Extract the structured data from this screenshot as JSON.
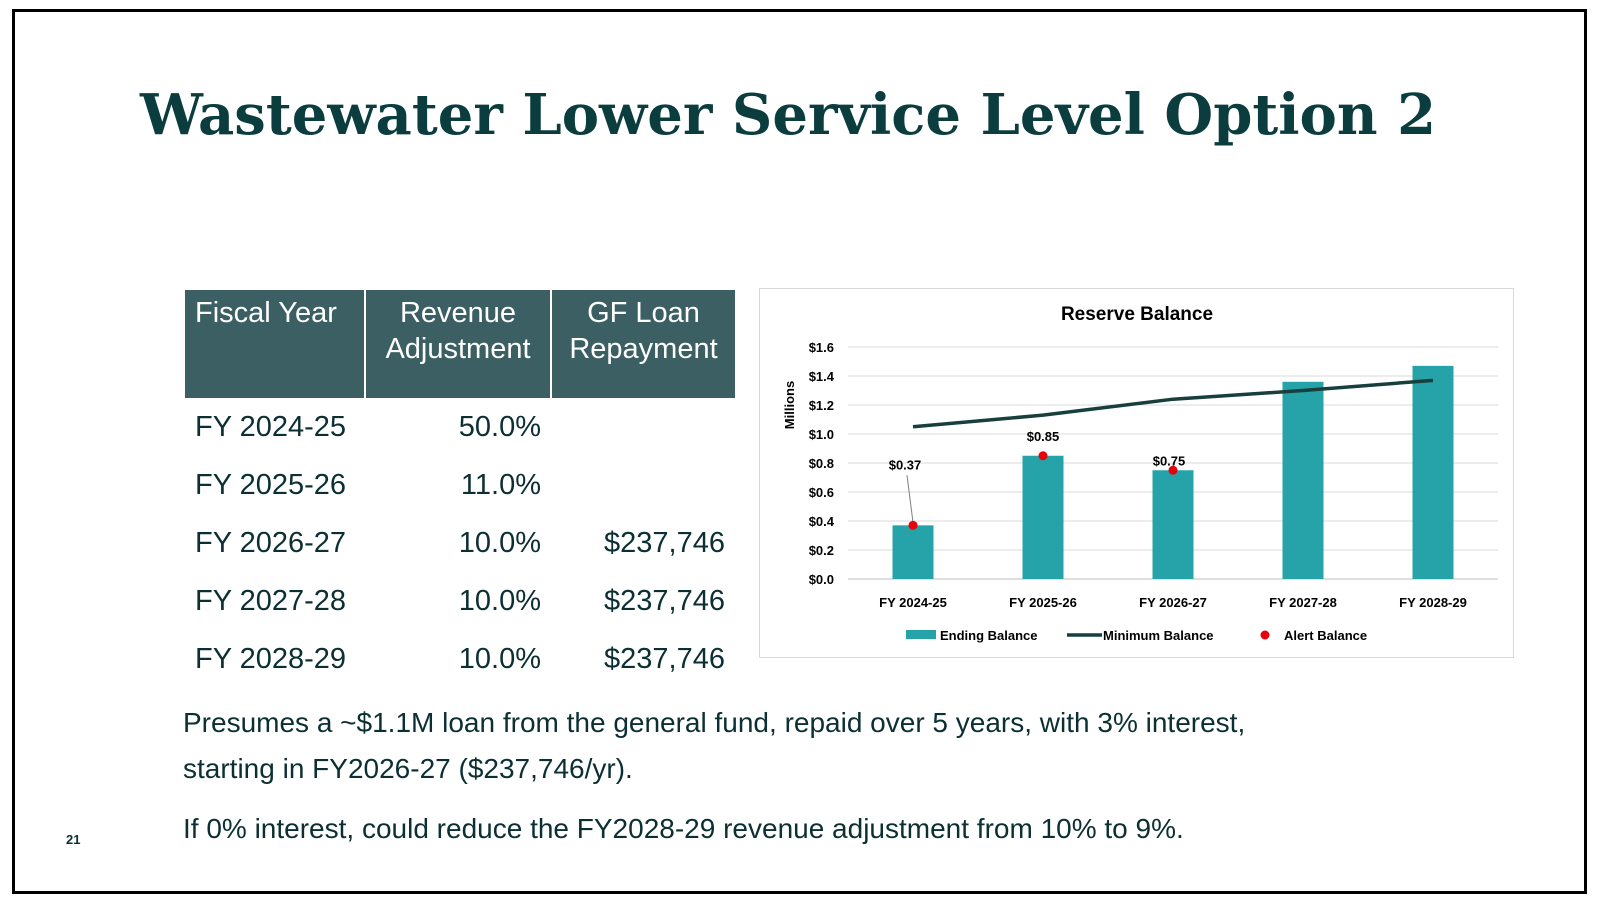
{
  "slide": {
    "title": "Wastewater Lower Service Level Option 2",
    "page_number": "21"
  },
  "table": {
    "headers": {
      "fiscal_year": "Fiscal Year",
      "revenue_adjustment": "Revenue Adjustment",
      "gf_loan_repayment": "GF Loan Repayment"
    },
    "rows": [
      {
        "year": "FY 2024-25",
        "adjustment": "50.0%",
        "loan": ""
      },
      {
        "year": "FY 2025-26",
        "adjustment": "11.0%",
        "loan": ""
      },
      {
        "year": "FY 2026-27",
        "adjustment": "10.0%",
        "loan": "$237,746"
      },
      {
        "year": "FY 2027-28",
        "adjustment": "10.0%",
        "loan": "$237,746"
      },
      {
        "year": "FY 2028-29",
        "adjustment": "10.0%",
        "loan": "$237,746"
      }
    ]
  },
  "notes": {
    "line1": "Presumes a ~$1.1M loan from the general fund, repaid over 5 years, with 3% interest, starting in FY2026-27 ($237,746/yr).",
    "line2": "If 0% interest, could reduce the FY2028-29 revenue adjustment from 10% to 9%."
  },
  "chart_data": {
    "type": "bar",
    "title": "Reserve Balance",
    "ylabel": "Millions",
    "xlabel": "",
    "categories": [
      "FY 2024-25",
      "FY 2025-26",
      "FY 2026-27",
      "FY 2027-28",
      "FY 2028-29"
    ],
    "ylim": [
      0,
      1.6
    ],
    "yticks": [
      0,
      0.2,
      0.4,
      0.6,
      0.8,
      1.0,
      1.2,
      1.4,
      1.6
    ],
    "ytick_labels": [
      "$0.0",
      "$0.2",
      "$0.4",
      "$0.6",
      "$0.8",
      "$1.0",
      "$1.2",
      "$1.4",
      "$1.6"
    ],
    "grid": true,
    "legend_position": "bottom",
    "series": [
      {
        "name": "Ending Balance",
        "kind": "bar",
        "color": "#26a3a8",
        "values": [
          0.37,
          0.85,
          0.75,
          1.36,
          1.47
        ]
      },
      {
        "name": "Minimum Balance",
        "kind": "line",
        "color": "#173f3d",
        "values": [
          1.05,
          1.13,
          1.24,
          1.3,
          1.37
        ]
      },
      {
        "name": "Alert Balance",
        "kind": "marker",
        "color": "#e8000b",
        "values": [
          0.37,
          0.85,
          0.75,
          null,
          null
        ]
      }
    ],
    "data_labels": [
      "$0.37",
      "$0.85",
      "$0.75",
      null,
      null
    ]
  }
}
